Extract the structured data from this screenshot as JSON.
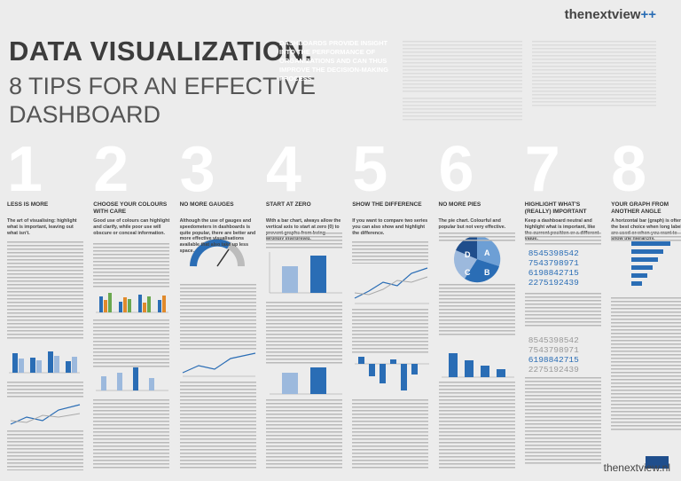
{
  "header": {
    "logo": "thenextview",
    "title": "DATA VISUALIZATION.",
    "subtitle_lines": [
      "8 TIPS FOR AN EFFECTIVE",
      "DASHBOARD"
    ]
  },
  "intro": {
    "text": "DASHBOARDS PROVIDE INSIGHT INTO THE PERFORMANCE OF ORGANIZATIONS AND CAN THUS IMPROVE THE DECISION-MAKING PROCESS."
  },
  "tips": [
    {
      "number": "1",
      "heading": "LESS IS MORE",
      "lead": "The art of visualising: highlight what is important, leaving out what isn't."
    },
    {
      "number": "2",
      "heading": "CHOOSE YOUR COLOURS WITH CARE",
      "lead": "Good use of colours can highlight and clarify, while poor use will obscure or conceal information."
    },
    {
      "number": "3",
      "heading": "NO MORE GAUGES",
      "lead": "Although the use of gauges and speedometers in dashboards is quite popular, there are better and more effective visualisations available that also take up less space."
    },
    {
      "number": "4",
      "heading": "START AT ZERO",
      "lead": "With a bar chart, always allow the vertical axis to start at zero (0) to prevent graphs from being wrongly interpreted."
    },
    {
      "number": "5",
      "heading": "SHOW THE DIFFERENCE",
      "lead": "If you want to compare two series you can also show and highlight the difference."
    },
    {
      "number": "6",
      "heading": "NO MORE PIES",
      "lead": "The pie chart. Colourful and popular but not very effective.",
      "pie_labels": [
        "A",
        "B",
        "C",
        "D"
      ]
    },
    {
      "number": "7",
      "heading": "HIGHLIGHT WHAT'S (REALLY) IMPORTANT",
      "lead": "Keep a dashboard neutral and highlight what is important, like the current position or a different value.",
      "numbers": [
        "8545398542",
        "7543798971",
        "6198842715",
        "2275192439"
      ]
    },
    {
      "number": "8",
      "heading": "YOUR GRAPH FROM ANOTHER ANGLE",
      "lead": "A horizontal bar (graph) is often the best choice when long labels are used or when you want to show the hierarchy."
    }
  ],
  "footer": {
    "url": "thenextview.nl"
  }
}
